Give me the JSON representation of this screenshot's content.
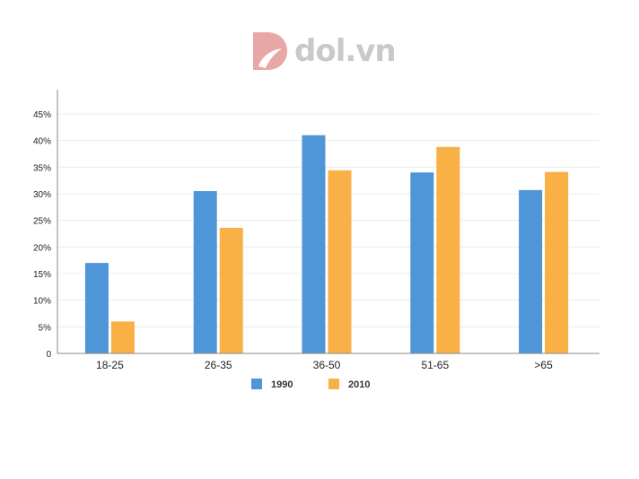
{
  "logo": {
    "text": "dol.vn",
    "color": "#e8a7a4"
  },
  "chart_data": {
    "type": "bar",
    "categories": [
      "18-25",
      "26-35",
      "36-50",
      "51-65",
      ">65"
    ],
    "series": [
      {
        "name": "1990",
        "color": "#4e96d8",
        "values": [
          17,
          30.5,
          41,
          34,
          30.7
        ]
      },
      {
        "name": "2010",
        "color": "#f9b046",
        "values": [
          6,
          23.6,
          34.4,
          38.8,
          34.1
        ]
      }
    ],
    "yticks": [
      "0",
      "5%",
      "10%",
      "15%",
      "20%",
      "25%",
      "30%",
      "35%",
      "40%",
      "45%"
    ],
    "ylim": [
      0,
      45
    ],
    "grid": true,
    "legend": "bottom"
  }
}
